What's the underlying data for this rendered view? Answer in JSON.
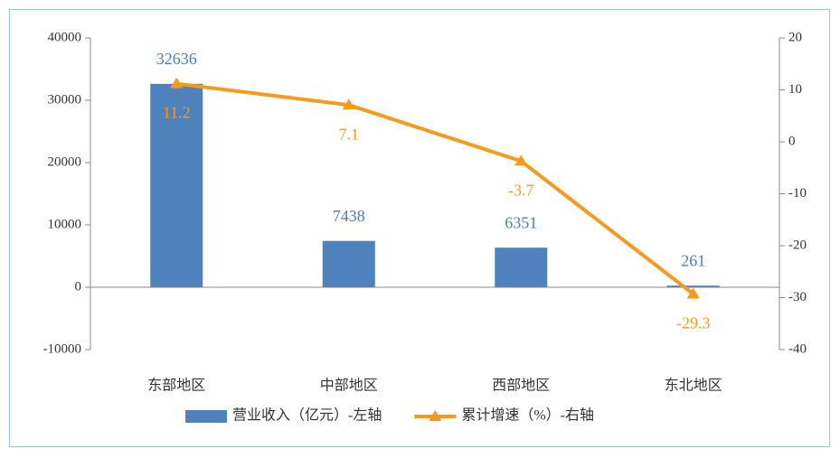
{
  "chart_data": {
    "type": "bar",
    "categories": [
      "东部地区",
      "中部地区",
      "西部地区",
      "东北地区"
    ],
    "series": [
      {
        "name": "营业收入（亿元）-左轴",
        "color": "#4f81bd",
        "type": "bar",
        "label_color": "#4a7ebb",
        "values": [
          32636,
          7438,
          6351,
          261
        ]
      },
      {
        "name": "累计增速（%）-右轴",
        "color": "#f79a1c",
        "type": "line",
        "marker": "triangle",
        "axis": "y2",
        "values": [
          11.2,
          7.1,
          -3.7,
          -29.3
        ]
      }
    ],
    "ylim": [
      -10000,
      40000
    ],
    "yticks": [
      -10000,
      0,
      10000,
      20000,
      30000,
      40000
    ],
    "y2lim": [
      -40,
      20
    ],
    "y2ticks": [
      -40,
      -30,
      -20,
      -10,
      0,
      10,
      20
    ],
    "grid": false,
    "legend": "bottom"
  }
}
